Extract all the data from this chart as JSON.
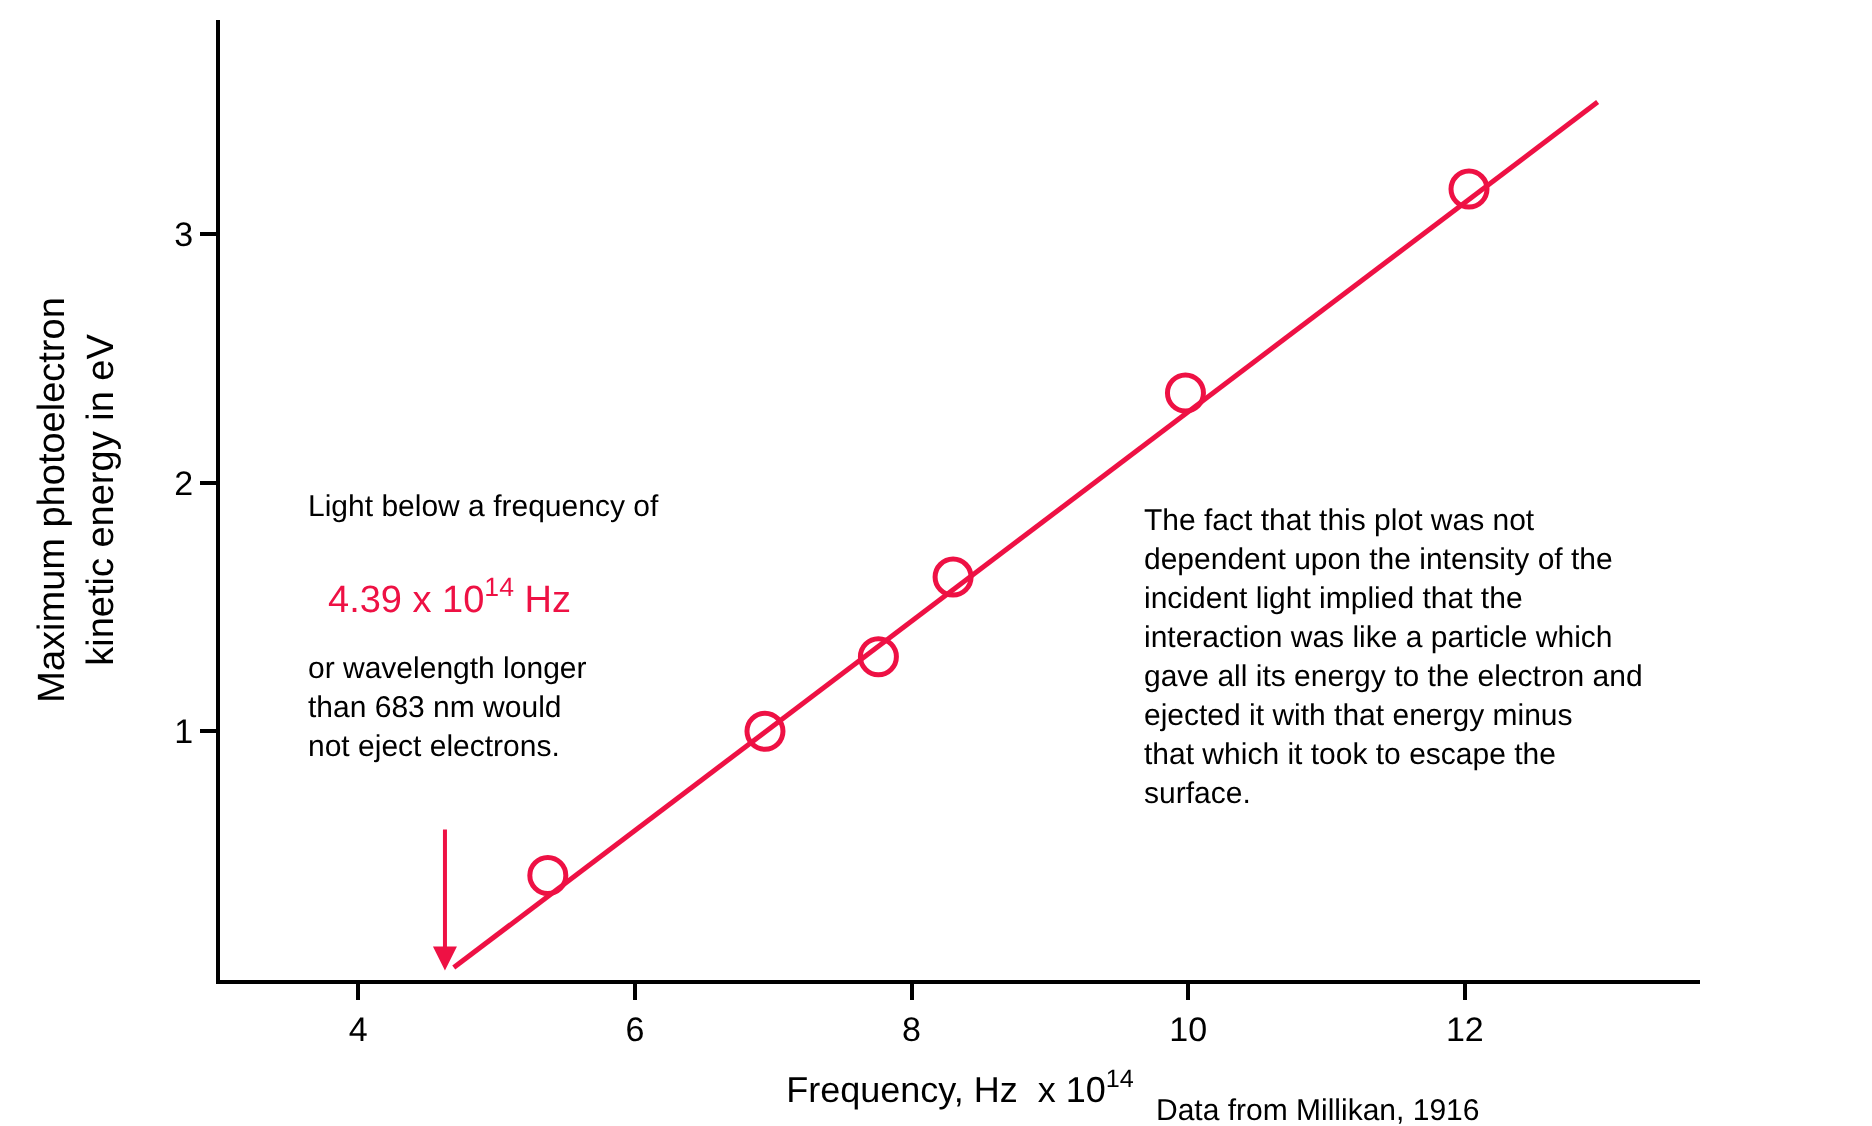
{
  "chart_data": {
    "type": "scatter",
    "xlabel": "Frequency, Hz  x 10$^{14}$",
    "ylabel": "Maximum photoelectron\nkinetic energy in eV",
    "x": [
      5.37,
      6.94,
      7.76,
      8.3,
      9.98,
      12.03
    ],
    "series": [
      {
        "color": "#ee1144",
        "marker": "circle",
        "values": [
          0.42,
          1.0,
          1.3,
          1.62,
          2.36,
          3.18
        ]
      },
      {
        "type": "line",
        "color": "#ee1144",
        "x": [
          4.69,
          12.96
        ],
        "values": [
          0.05,
          3.53
        ],
        "line_style": "solid"
      }
    ],
    "xlim": [
      3.0,
      13.7
    ],
    "ylim": [
      0,
      3.86
    ],
    "xticks": [
      4,
      6,
      8,
      10,
      12
    ],
    "yticks": [
      1,
      2,
      3
    ],
    "annotations": [
      "Light below a frequency of",
      "4.39 x 10$^{14}$ Hz",
      "or wavelength longer\nthan 683 nm would\nnot eject electrons.",
      "The fact that this plot was not\ndependent upon the intensity of the\nincident light implied that the\ninteraction was like a particle which\ngave all its energy to the electron and\nejected it with that energy minus\nthat which it took to escape the\nsurface.",
      "Data from Millikan, 1916"
    ]
  }
}
